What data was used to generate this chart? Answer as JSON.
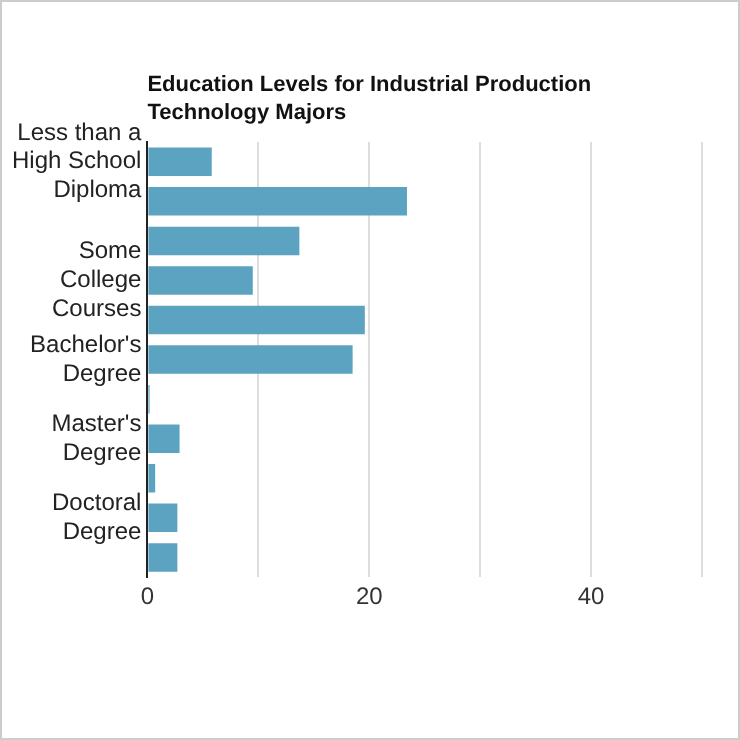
{
  "chart_data": {
    "type": "bar",
    "orientation": "horizontal",
    "title": "Education Levels for Industrial Production Technology Majors",
    "categories": [
      "Less than a High School Diploma",
      null,
      null,
      "Some College Courses",
      null,
      "Bachelor's Degree",
      null,
      "Master's Degree",
      null,
      "Doctoral Degree",
      null
    ],
    "values": [
      5.8,
      23.4,
      13.7,
      9.5,
      19.6,
      18.5,
      0.2,
      2.9,
      0.7,
      2.7,
      2.7
    ],
    "color": "#5ba3c0",
    "xlim": [
      0,
      50
    ],
    "xticks": [
      0,
      {
        "value": 10,
        "label": null
      },
      20,
      {
        "value": 30,
        "label": null
      },
      40,
      {
        "value": 50,
        "label": null
      }
    ],
    "grid": "x",
    "legend": false
  }
}
